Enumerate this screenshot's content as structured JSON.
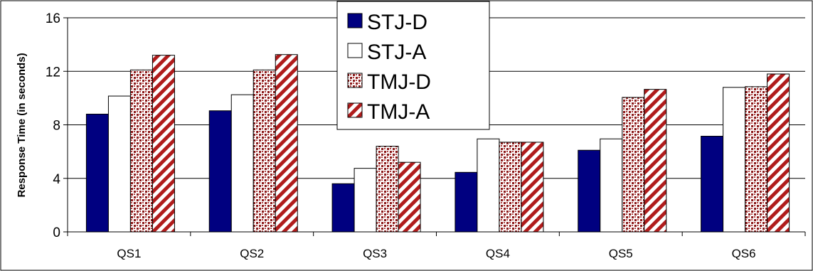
{
  "chart_data": {
    "type": "bar",
    "categories": [
      "QS1",
      "QS2",
      "QS3",
      "QS4",
      "QS5",
      "QS6"
    ],
    "series": [
      {
        "name": "STJ-D",
        "values": [
          8.8,
          9.05,
          3.6,
          4.45,
          6.1,
          7.15
        ],
        "color": "#000080",
        "pattern": "solid"
      },
      {
        "name": "STJ-A",
        "values": [
          10.15,
          10.25,
          4.75,
          6.95,
          6.95,
          10.8
        ],
        "color": "#ffffff",
        "pattern": "hollow"
      },
      {
        "name": "TMJ-D",
        "values": [
          12.1,
          12.1,
          6.4,
          6.7,
          10.05,
          10.85
        ],
        "color": "#8b1a1a",
        "pattern": "dots"
      },
      {
        "name": "TMJ-A",
        "values": [
          13.2,
          13.25,
          5.2,
          6.7,
          10.65,
          11.8
        ],
        "color": "#b01c1c",
        "pattern": "diagonal-stripes"
      }
    ],
    "title": "",
    "xlabel": "",
    "ylabel": "Response Time (in seconds)",
    "ylim": [
      0,
      16
    ],
    "yticks": [
      "0",
      "4",
      "8",
      "12",
      "16"
    ],
    "grid": true,
    "legend_position": "top-center"
  }
}
